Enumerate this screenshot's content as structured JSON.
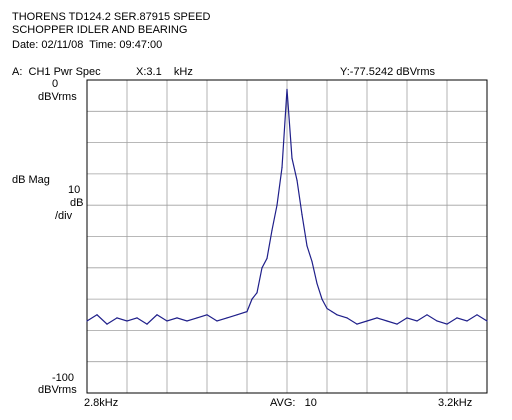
{
  "header": {
    "line1": "THORENS TD124.2 SER.87915 SPEED",
    "line2": "SCHOPPER IDLER AND BEARING",
    "line3": "Date: 02/11/08  Time: 09:47:00"
  },
  "status": {
    "trace": "A:  CH1 Pwr Spec",
    "x_readout": "X:3.1    kHz",
    "y_readout": "Y:-77.5242 dBVrms"
  },
  "y_axis": {
    "top_value": "0",
    "top_unit": "dBVrms",
    "mag_label": "dB Mag",
    "scale_value": "10",
    "scale_unit": "dB",
    "scale_per": "/div",
    "bottom_value": "-100",
    "bottom_unit": "dBVrms"
  },
  "x_axis": {
    "start": "2.8kHz",
    "avg": "AVG:   10",
    "end": "3.2kHz"
  },
  "colors": {
    "trace": "#1f1f8a",
    "grid": "#a0a0a0",
    "frame": "#000000"
  },
  "chart_data": {
    "type": "line",
    "xlim": [
      2.8,
      3.2
    ],
    "ylim": [
      -100,
      0
    ],
    "grid": true,
    "x": [
      2.8,
      2.81,
      2.82,
      2.83,
      2.84,
      2.85,
      2.86,
      2.87,
      2.88,
      2.89,
      2.9,
      2.91,
      2.92,
      2.93,
      2.94,
      2.95,
      2.96,
      2.965,
      2.97,
      2.975,
      2.98,
      2.985,
      2.99,
      2.995,
      3.0,
      3.005,
      3.01,
      3.015,
      3.02,
      3.025,
      3.03,
      3.035,
      3.04,
      3.045,
      3.05,
      3.06,
      3.07,
      3.08,
      3.09,
      3.1,
      3.11,
      3.12,
      3.13,
      3.14,
      3.15,
      3.16,
      3.17,
      3.18,
      3.19,
      3.2
    ],
    "values": [
      -77,
      -75,
      -78,
      -76,
      -77,
      -76,
      -78,
      -75,
      -77,
      -76,
      -77,
      -76,
      -75,
      -77,
      -76,
      -75,
      -74,
      -70,
      -68,
      -60,
      -57,
      -48,
      -40,
      -28,
      -3,
      -25,
      -32,
      -43,
      -53,
      -58,
      -65,
      -70,
      -73,
      -74,
      -75,
      -76,
      -78,
      -77,
      -76,
      -77,
      -78,
      -76,
      -77,
      -75,
      -77,
      -78,
      -76,
      -77,
      -75,
      -77
    ]
  }
}
